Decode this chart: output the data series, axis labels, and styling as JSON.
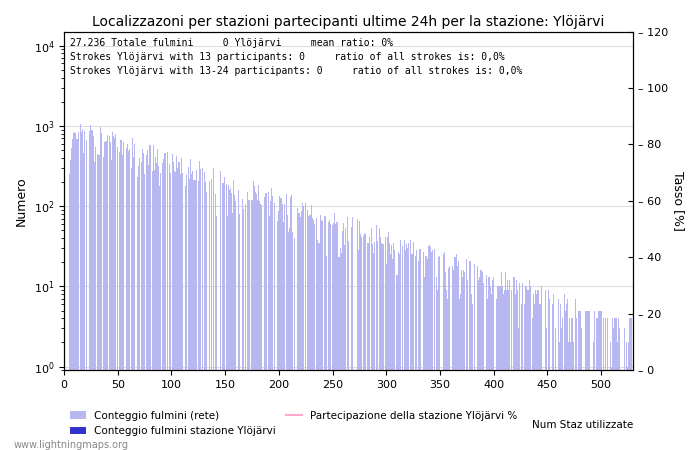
{
  "title": "Localizzazoni per stazioni partecipanti ultime 24h per la stazione: Ylöjärvi",
  "ylabel_left": "Numero",
  "ylabel_right": "Tasso [%]",
  "annotation_lines": [
    "27.236 Totale fulmini     0 Ylöjärvi     mean ratio: 0%",
    "Strokes Ylöjärvi with 13 participants: 0     ratio of all strokes is: 0,0%",
    "Strokes Ylöjärvi with 13-24 participants: 0     ratio of all strokes is: 0,0%"
  ],
  "xlim": [
    0,
    530
  ],
  "ylim_right": [
    0,
    120
  ],
  "yticks_right": [
    0,
    20,
    40,
    60,
    80,
    100,
    120
  ],
  "bar_color_network": "#b8b8f0",
  "bar_color_station": "#3333cc",
  "line_color_participation": "#ffaacc",
  "watermark": "www.lightningmaps.org",
  "legend_labels": [
    "Conteggio fulmini (rete)",
    "Conteggio fulmini stazione Ylöjärvi",
    "Num Staz utilizzate",
    "Partecipazione della stazione Ylöjärvi %"
  ],
  "fig_width": 7.0,
  "fig_height": 4.5,
  "dpi": 100
}
